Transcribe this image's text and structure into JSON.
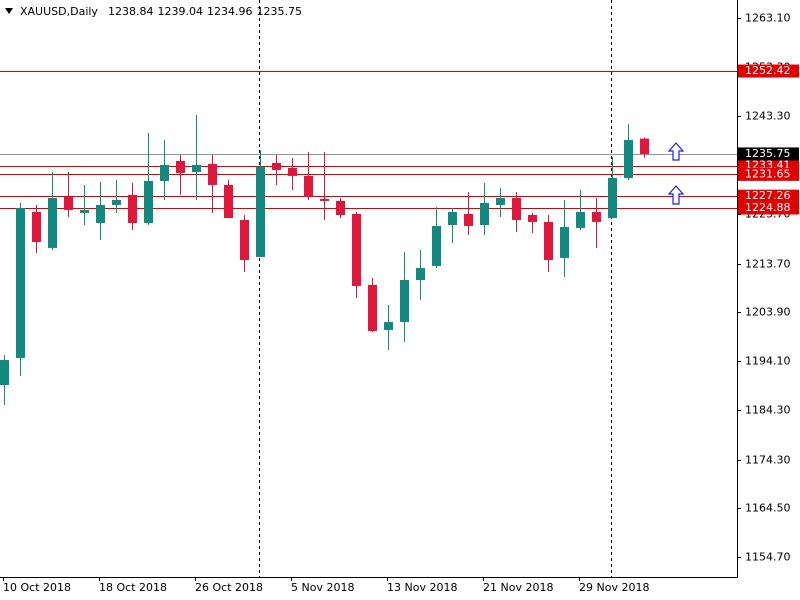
{
  "chart_data": {
    "type": "candlestick",
    "symbol": "XAUUSD,Daily",
    "categories": [
      "10 Oct 2018",
      null,
      null,
      null,
      null,
      null,
      "18 Oct 2018",
      null,
      null,
      null,
      null,
      null,
      "26 Oct 2018",
      null,
      null,
      null,
      null,
      null,
      "5 Nov 2018",
      null,
      null,
      null,
      null,
      null,
      "13 Nov 2018",
      null,
      null,
      null,
      null,
      null,
      "21 Nov 2018",
      null,
      null,
      null,
      null,
      null,
      "29 Nov 2018",
      null,
      null,
      null,
      null
    ],
    "open": [
      1189.3,
      1194.73,
      1224.09,
      1216.85,
      1227.1,
      1223.89,
      1221.87,
      1225.49,
      1227.51,
      1221.87,
      1230.32,
      1234.34,
      1232.13,
      1233.74,
      1229.52,
      1222.48,
      1215.04,
      1233.94,
      1232.93,
      1231.33,
      1226.7,
      1226.3,
      1223.68,
      1209.41,
      1200.36,
      1201.97,
      1210.41,
      1213.23,
      1221.47,
      1223.68,
      1221.47,
      1225.49,
      1226.9,
      1223.48,
      1222.08,
      1214.84,
      1220.87,
      1224.09,
      1222.88,
      1230.92,
      1238.84
    ],
    "high": [
      1195.33,
      1225.9,
      1225.49,
      1232.13,
      1232.13,
      1229.52,
      1230.12,
      1230.52,
      1229.92,
      1239.97,
      1238.57,
      1235.55,
      1243.59,
      1235.55,
      1230.52,
      1223.48,
      1236.55,
      1235.55,
      1234.95,
      1236.15,
      1236.15,
      1226.9,
      1224.09,
      1210.81,
      1205.38,
      1216.04,
      1216.44,
      1225.09,
      1224.89,
      1228.11,
      1229.92,
      1228.91,
      1228.11,
      1223.89,
      1223.48,
      1226.5,
      1228.51,
      1226.9,
      1235.15,
      1241.78,
      1239.04
    ],
    "low": [
      1185.27,
      1191.11,
      1215.84,
      1216.44,
      1223.08,
      1221.47,
      1218.46,
      1223.89,
      1220.47,
      1221.47,
      1226.5,
      1227.51,
      1226.5,
      1223.89,
      1222.88,
      1212.02,
      1215.04,
      1229.52,
      1228.51,
      1226.5,
      1222.48,
      1222.88,
      1206.79,
      1199.95,
      1196.33,
      1197.94,
      1206.39,
      1212.82,
      1217.85,
      1219.46,
      1219.46,
      1223.08,
      1220.06,
      1219.86,
      1212.02,
      1211.02,
      1220.47,
      1216.85,
      1222.88,
      1230.52,
      1234.96
    ],
    "close": [
      1194.32,
      1224.89,
      1218.05,
      1226.9,
      1224.49,
      1224.49,
      1225.49,
      1226.5,
      1221.87,
      1230.32,
      1233.54,
      1231.93,
      1233.54,
      1229.52,
      1222.88,
      1214.43,
      1233.14,
      1232.53,
      1231.33,
      1227.1,
      1226.3,
      1223.48,
      1209.21,
      1200.16,
      1201.97,
      1210.41,
      1212.82,
      1221.27,
      1224.09,
      1221.27,
      1225.9,
      1226.9,
      1222.48,
      1222.08,
      1214.43,
      1221.07,
      1224.09,
      1222.08,
      1230.92,
      1238.57,
      1235.75
    ],
    "up_color": "#138a80",
    "down_color": "#e0163c",
    "levels": [
      {
        "value": 1252.42,
        "color": "#e00000"
      },
      {
        "value": 1233.41,
        "color": "#e00000"
      },
      {
        "value": 1231.65,
        "color": "#e00000"
      },
      {
        "value": 1227.26,
        "color": "#e00000"
      },
      {
        "value": 1224.88,
        "color": "#e00000"
      }
    ],
    "price_line_color": "#8a9a9a",
    "ylim": [
      1150.7,
      1266.7
    ],
    "yticks": [
      {
        "value": 1263.1,
        "label": "1263.10"
      },
      {
        "value": 1253.3,
        "label": "1253.30"
      },
      {
        "value": 1243.3,
        "label": "1243.30"
      },
      {
        "value": 1233.5,
        "label": "1233.50"
      },
      {
        "value": 1223.7,
        "label": "1223.70"
      },
      {
        "value": 1213.7,
        "label": "1213.70"
      },
      {
        "value": 1203.9,
        "label": "1203.90"
      },
      {
        "value": 1194.1,
        "label": "1194.10"
      },
      {
        "value": 1184.3,
        "label": "1184.30"
      },
      {
        "value": 1174.3,
        "label": "1174.30"
      },
      {
        "value": 1164.5,
        "label": "1164.50"
      },
      {
        "value": 1154.7,
        "label": "1154.70"
      }
    ]
  }
}
